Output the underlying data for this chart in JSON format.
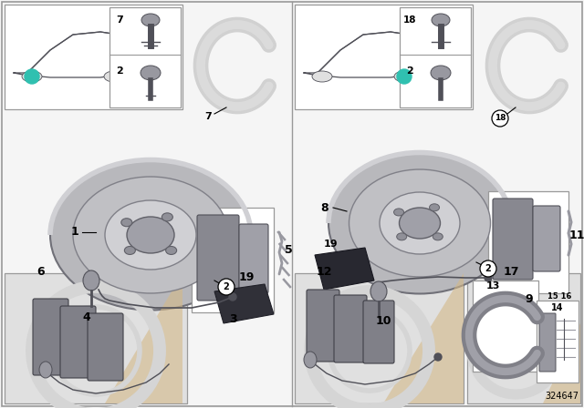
{
  "diagram_id": "324647",
  "bg": "#f5f5f5",
  "white": "#ffffff",
  "light_gray": "#c8c8c8",
  "mid_gray": "#9898a0",
  "dark_gray": "#505058",
  "very_light_gray": "#e0e0e0",
  "teal": "#30c0b0",
  "tan": "#d4b888",
  "border": "#999999",
  "black": "#000000",
  "panel_bg": "#ffffff"
}
